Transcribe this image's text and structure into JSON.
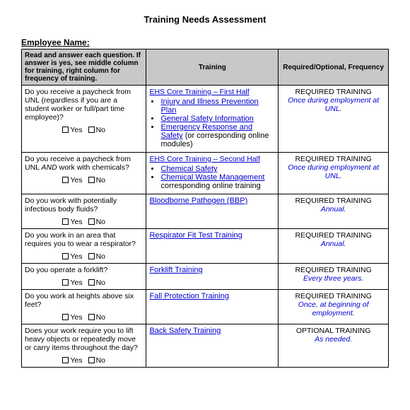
{
  "title": "Training Needs Assessment",
  "employee_label": "Employee Name:",
  "headers": {
    "instructions": "Read and answer each question.  If answer is yes, see middle column for training, right column for frequency of training.",
    "training": "Training",
    "req": "Required/Optional, Frequency"
  },
  "yes": "Yes",
  "no": "No",
  "rows": [
    {
      "question": "Do you receive a paycheck from UNL (regardless if you are a student worker or full/part time employee)?",
      "training_head": "EHS Core Training – First Half",
      "bullets": [
        {
          "text": "Injury and Illness Prevention Plan",
          "link": true
        },
        {
          "text": "General Safety Information",
          "link": true
        },
        {
          "text": "Emergency Response and Safety",
          "link": true
        }
      ],
      "training_tail": " (or corresponding online modules)",
      "req": "REQUIRED TRAINING",
      "freq": "Once during employment at UNL."
    },
    {
      "question": "Do you receive a paycheck from UNL AND work with chemicals?",
      "training_head": "EHS Core Training – Second Half",
      "bullets": [
        {
          "text": "Chemical Safety",
          "link": true
        },
        {
          "text": "Chemical Waste Management",
          "link": true
        }
      ],
      "training_tail": " corresponding online training",
      "req": "REQUIRED TRAINING",
      "freq": "Once during employment at UNL."
    },
    {
      "question": "Do you work with potentially infectious body fluids?",
      "training_single": "Bloodborne Pathogen (BBP)",
      "req": "REQUIRED TRAINING",
      "freq": "Annual."
    },
    {
      "question": "Do you work in an area that requires you to wear a respirator?",
      "training_single": "Respirator Fit Test Training",
      "req": "REQUIRED TRAINING",
      "freq": "Annual."
    },
    {
      "question": "Do you operate a forklift?",
      "training_single": "Forklift Training",
      "req": "REQUIRED TRAINING",
      "freq": "Every three years."
    },
    {
      "question": "Do you work at heights above six feet?",
      "training_single": "Fall Protection Training",
      "req": "REQUIRED TRAINING",
      "freq": "Once, at beginning of employment."
    },
    {
      "question": "Does your work require you to  lift heavy objects or repeatedly move or carry items throughout the day?",
      "training_single": "Back Safety Training",
      "req": "OPTIONAL TRAINING",
      "freq": "As needed."
    }
  ]
}
